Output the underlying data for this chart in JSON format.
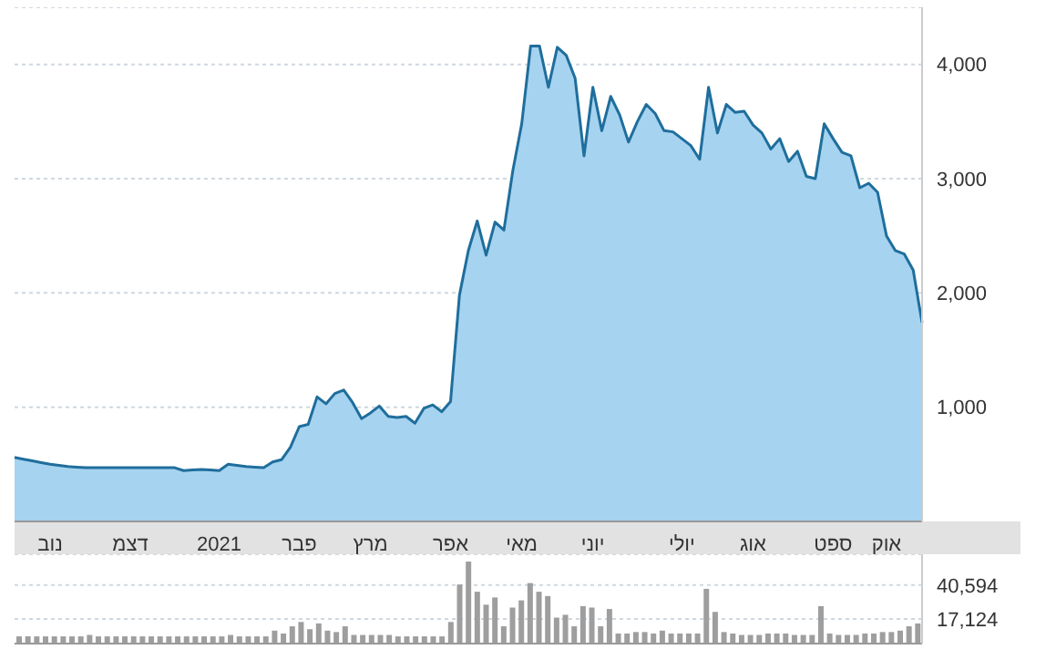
{
  "chart_data": [
    {
      "type": "area",
      "color": "#1f6e9c",
      "grid": "y",
      "ylim": [
        0,
        4500
      ],
      "yticks": [
        {
          "value": 1000,
          "label": "1,000"
        },
        {
          "value": 2000,
          "label": "2,000"
        },
        {
          "value": 3000,
          "label": "3,000"
        },
        {
          "value": 4000,
          "label": "4,000"
        }
      ],
      "categories": [
        null,
        null,
        null,
        null,
        "נוב",
        null,
        null,
        null,
        null,
        null,
        null,
        null,
        null,
        "דצמ",
        null,
        null,
        null,
        null,
        null,
        null,
        null,
        null,
        null,
        "2021",
        null,
        null,
        null,
        null,
        null,
        null,
        null,
        null,
        "פבר",
        null,
        null,
        null,
        null,
        null,
        null,
        null,
        "מרץ",
        null,
        null,
        null,
        null,
        null,
        null,
        null,
        null,
        "אפר",
        null,
        null,
        null,
        null,
        null,
        null,
        null,
        "מאי",
        null,
        null,
        null,
        null,
        null,
        null,
        null,
        "יוני",
        null,
        null,
        null,
        null,
        null,
        null,
        null,
        null,
        null,
        "יולי",
        null,
        null,
        null,
        null,
        null,
        null,
        null,
        "אוג",
        null,
        null,
        null,
        null,
        null,
        null,
        null,
        null,
        "ספט",
        null,
        null,
        null,
        null,
        null,
        "אוק",
        null,
        null,
        null,
        null
      ],
      "values": [
        560,
        545,
        530,
        515,
        500,
        490,
        480,
        475,
        470,
        470,
        470,
        470,
        470,
        470,
        470,
        470,
        470,
        470,
        470,
        445,
        450,
        455,
        450,
        445,
        500,
        490,
        480,
        475,
        470,
        520,
        540,
        650,
        830,
        850,
        1090,
        1030,
        1120,
        1150,
        1040,
        900,
        950,
        1010,
        920,
        910,
        920,
        860,
        990,
        1020,
        960,
        1050,
        1980,
        2370,
        2630,
        2330,
        2620,
        2550,
        3070,
        3480,
        4160,
        4160,
        3800,
        4150,
        4080,
        3880,
        3200,
        3800,
        3420,
        3720,
        3560,
        3320,
        3500,
        3650,
        3570,
        3420,
        3410,
        3350,
        3290,
        3170,
        3800,
        3400,
        3650,
        3580,
        3590,
        3470,
        3400,
        3260,
        3350,
        3150,
        3240,
        3020,
        3000,
        3480,
        3350,
        3230,
        3200,
        2920,
        2960,
        2880,
        2500,
        2370,
        2340,
        2200,
        1740
      ]
    },
    {
      "type": "bar",
      "color": "#9e9e9e",
      "grid": "y",
      "tick_labels": "y",
      "ylim": [
        0,
        62000
      ],
      "yticks": [
        {
          "value": 17124,
          "label": "17,124"
        },
        {
          "value": 40594,
          "label": "40,594"
        }
      ],
      "categories": [
        null,
        null,
        null,
        null,
        null,
        null,
        null,
        null,
        null,
        null,
        null,
        null,
        null,
        null,
        null,
        null,
        null,
        null,
        null,
        null,
        null,
        null,
        null,
        null,
        null,
        null,
        null,
        null,
        null,
        null,
        null,
        null,
        null,
        null,
        null,
        null,
        null,
        null,
        null,
        null,
        null,
        null,
        null,
        null,
        null,
        null,
        null,
        null,
        null,
        null,
        null,
        null,
        null,
        null,
        null,
        null,
        null,
        null,
        null,
        null,
        null,
        null,
        null,
        null,
        null,
        null,
        null,
        null,
        null,
        null,
        null,
        null,
        null,
        null,
        null,
        null,
        null,
        null,
        null,
        null,
        null,
        null,
        null,
        null,
        null,
        null,
        null,
        null,
        null,
        null,
        null,
        null,
        null,
        null,
        null,
        null,
        null,
        null,
        null,
        null,
        null,
        null,
        null
      ],
      "values": [
        5000,
        5000,
        5000,
        5000,
        5000,
        5000,
        5000,
        5000,
        6000,
        5000,
        5000,
        5000,
        5000,
        5000,
        5000,
        5000,
        5000,
        5000,
        5000,
        5000,
        5000,
        5000,
        5000,
        5000,
        6000,
        5000,
        5000,
        5000,
        5000,
        9000,
        7000,
        12000,
        15000,
        10000,
        14000,
        9000,
        8000,
        12000,
        6000,
        6000,
        6000,
        6000,
        6000,
        5000,
        5000,
        5000,
        5000,
        5000,
        5000,
        15000,
        41000,
        57000,
        36000,
        27000,
        32000,
        12000,
        25000,
        30000,
        42000,
        36000,
        33000,
        18000,
        20000,
        12000,
        26000,
        25000,
        12000,
        24000,
        7000,
        7000,
        8000,
        8000,
        7000,
        9000,
        7000,
        7000,
        7000,
        7000,
        38000,
        22000,
        8000,
        7000,
        6000,
        6000,
        6000,
        7000,
        7000,
        7000,
        6000,
        6000,
        6000,
        26000,
        7000,
        6000,
        6000,
        6000,
        7000,
        7000,
        8000,
        8000,
        9000,
        12000,
        14000
      ]
    }
  ]
}
